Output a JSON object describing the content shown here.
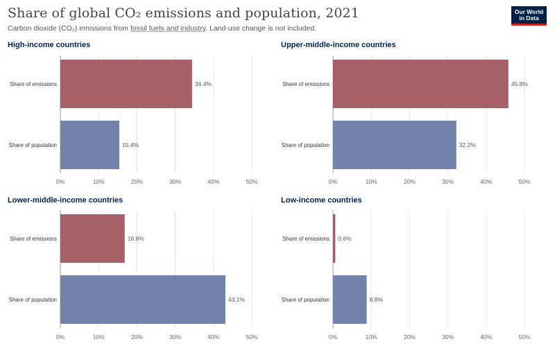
{
  "header": {
    "title": "Share of global CO₂ emissions and population, 2021",
    "subtitle_pre": "Carbon dioxide (CO₂) emissions from ",
    "subtitle_link": "fossil fuels and industry",
    "subtitle_post": ". Land-use change is not included.",
    "logo_line1": "Our World",
    "logo_line2": "in Data"
  },
  "colors": {
    "emissions": "#a0585d",
    "population": "#6a7ba5",
    "title": "#002147",
    "grid": "#e3e3e3"
  },
  "chart_data": [
    {
      "type": "bar",
      "orientation": "horizontal",
      "title": "High-income countries",
      "categories": [
        "Share of emissions",
        "Share of population"
      ],
      "values": [
        34.4,
        15.4
      ],
      "value_labels": [
        "34.4%",
        "15.4%"
      ],
      "xlim": [
        0,
        50
      ],
      "ticks": [
        "0%",
        "10%",
        "20%",
        "30%",
        "40%",
        "50%"
      ],
      "unit": "%"
    },
    {
      "type": "bar",
      "orientation": "horizontal",
      "title": "Upper-middle-income countries",
      "categories": [
        "Share of emissions",
        "Share of population"
      ],
      "values": [
        45.8,
        32.2
      ],
      "value_labels": [
        "45.8%",
        "32.2%"
      ],
      "xlim": [
        0,
        50
      ],
      "ticks": [
        "0%",
        "10%",
        "20%",
        "30%",
        "40%",
        "50%"
      ],
      "unit": "%"
    },
    {
      "type": "bar",
      "orientation": "horizontal",
      "title": "Lower-middle-income countries",
      "categories": [
        "Share of emissions",
        "Share of population"
      ],
      "values": [
        16.8,
        43.1
      ],
      "value_labels": [
        "16.8%",
        "43.1%"
      ],
      "xlim": [
        0,
        50
      ],
      "ticks": [
        "0%",
        "10%",
        "20%",
        "30%",
        "40%",
        "50%"
      ],
      "unit": "%"
    },
    {
      "type": "bar",
      "orientation": "horizontal",
      "title": "Low-income countries",
      "categories": [
        "Share of emissions",
        "Share of population"
      ],
      "values": [
        0.6,
        8.8
      ],
      "value_labels": [
        "0.6%",
        "8.8%"
      ],
      "xlim": [
        0,
        50
      ],
      "ticks": [
        "0%",
        "10%",
        "20%",
        "30%",
        "40%",
        "50%"
      ],
      "unit": "%"
    }
  ]
}
